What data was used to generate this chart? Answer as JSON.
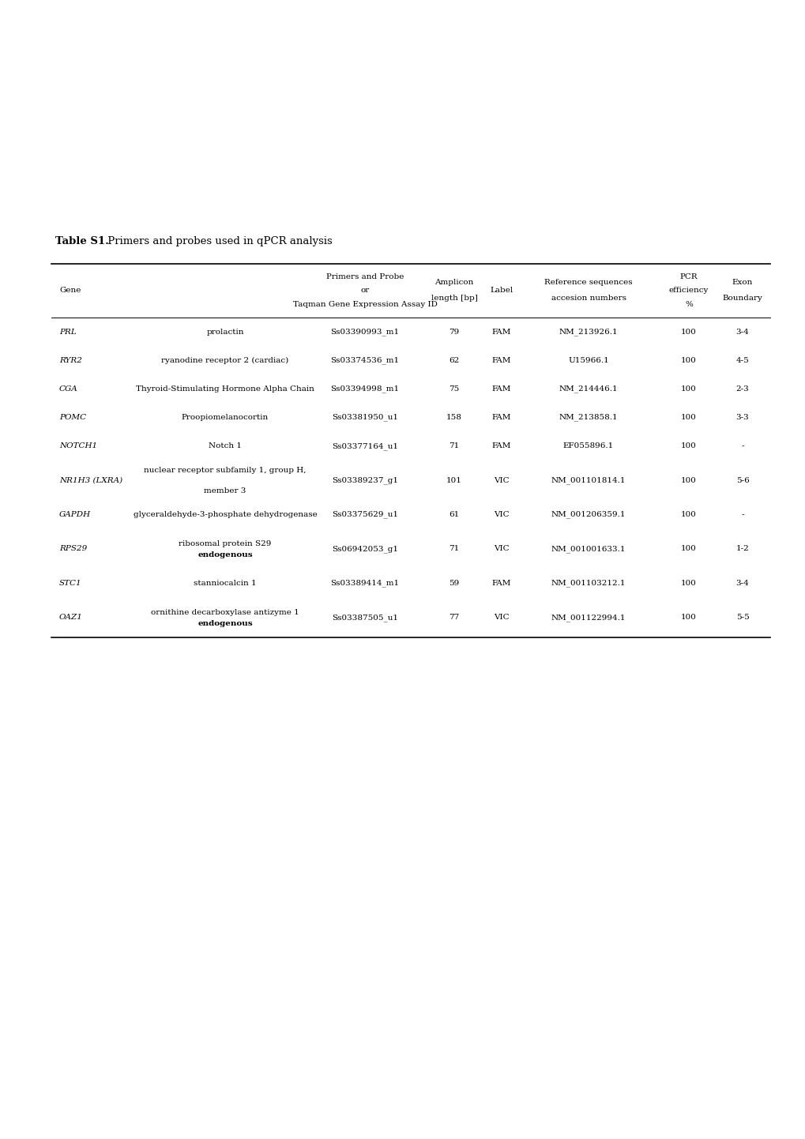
{
  "title_bold": "Table S1.",
  "title_normal": " Primers and probes used in qPCR analysis",
  "background_color": "#ffffff",
  "text_color": "#000000",
  "font_size": 7.5,
  "title_font_size": 9.5,
  "figsize": [
    10.2,
    14.42
  ],
  "dpi": 100,
  "rows": [
    {
      "gene": "PRL",
      "description": "prolactin",
      "assay_id": "Ss03390993_m1",
      "amplicon": "79",
      "label": "FAM",
      "reference": "NM_213926.1",
      "efficiency": "100",
      "exon": "3-4",
      "desc_line2": "",
      "endogenous": ""
    },
    {
      "gene": "RYR2",
      "description": "ryanodine receptor 2 (cardiac)",
      "assay_id": "Ss03374536_m1",
      "amplicon": "62",
      "label": "FAM",
      "reference": "U15966.1",
      "efficiency": "100",
      "exon": "4-5",
      "desc_line2": "",
      "endogenous": ""
    },
    {
      "gene": "CGA",
      "description": "Thyroid-Stimulating Hormone Alpha Chain",
      "assay_id": "Ss03394998_m1",
      "amplicon": "75",
      "label": "FAM",
      "reference": "NM_214446.1",
      "efficiency": "100",
      "exon": "2-3",
      "desc_line2": "",
      "endogenous": ""
    },
    {
      "gene": "POMC",
      "description": "Proopiomelanocortin",
      "assay_id": "Ss03381950_u1",
      "amplicon": "158",
      "label": "FAM",
      "reference": "NM_213858.1",
      "efficiency": "100",
      "exon": "3-3",
      "desc_line2": "",
      "endogenous": ""
    },
    {
      "gene": "NOTCH1",
      "description": "Notch 1",
      "assay_id": "Ss03377164_u1",
      "amplicon": "71",
      "label": "FAM",
      "reference": "EF055896.1",
      "efficiency": "100",
      "exon": "-",
      "desc_line2": "",
      "endogenous": ""
    },
    {
      "gene": "NR1H3 (LXRA)",
      "description": "nuclear receptor subfamily 1, group H,",
      "assay_id": "Ss03389237_g1",
      "amplicon": "101",
      "label": "VIC",
      "reference": "NM_001101814.1",
      "efficiency": "100",
      "exon": "5-6",
      "desc_line2": "member 3",
      "endogenous": ""
    },
    {
      "gene": "GAPDH",
      "description": "glyceraldehyde-3-phosphate dehydrogenase",
      "assay_id": "Ss03375629_u1",
      "amplicon": "61",
      "label": "VIC",
      "reference": "NM_001206359.1",
      "efficiency": "100",
      "exon": "-",
      "desc_line2": "",
      "endogenous": ""
    },
    {
      "gene": "RPS29",
      "description": "ribosomal protein S29",
      "assay_id": "Ss06942053_g1",
      "amplicon": "71",
      "label": "VIC",
      "reference": "NM_001001633.1",
      "efficiency": "100",
      "exon": "1-2",
      "desc_line2": "",
      "endogenous": "endogenous"
    },
    {
      "gene": "STC1",
      "description": "stanniocalcin 1",
      "assay_id": "Ss03389414_m1",
      "amplicon": "59",
      "label": "FAM",
      "reference": "NM_001103212.1",
      "efficiency": "100",
      "exon": "3-4",
      "desc_line2": "",
      "endogenous": ""
    },
    {
      "gene": "OAZ1",
      "description": "ornithine decarboxylase antizyme 1",
      "assay_id": "Ss03387505_u1",
      "amplicon": "77",
      "label": "VIC",
      "reference": "NM_001122994.1",
      "efficiency": "100",
      "exon": "5-5",
      "desc_line2": "",
      "endogenous": "endogenous"
    }
  ]
}
